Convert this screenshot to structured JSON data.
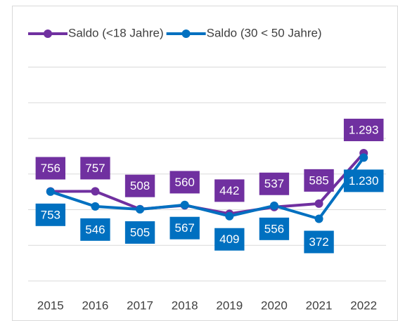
{
  "chart_data": {
    "type": "line",
    "categories": [
      "2015",
      "2016",
      "2017",
      "2018",
      "2019",
      "2020",
      "2021",
      "2022"
    ],
    "series": [
      {
        "name": "Saldo (<18 Jahre)",
        "color": "#7030a0",
        "values": [
          756,
          757,
          508,
          560,
          442,
          537,
          585,
          1293
        ],
        "value_labels": [
          "756",
          "757",
          "508",
          "560",
          "442",
          "537",
          "585",
          "1.293"
        ]
      },
      {
        "name": "Saldo (30 < 50 Jahre)",
        "color": "#0070c0",
        "values": [
          753,
          546,
          505,
          567,
          409,
          556,
          372,
          1230
        ],
        "value_labels": [
          "753",
          "546",
          "505",
          "567",
          "409",
          "556",
          "372",
          "1.230"
        ]
      }
    ],
    "ylim": [
      -500,
      2500
    ],
    "yticks": [
      -500,
      0,
      500,
      1000,
      1500,
      2000,
      2500
    ],
    "grid": true,
    "legend": "top"
  }
}
